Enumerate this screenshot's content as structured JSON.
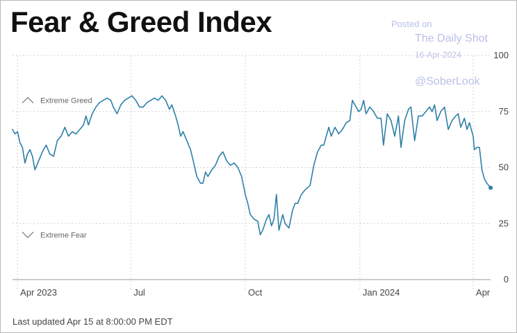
{
  "watermark": {
    "posted": "Posted on",
    "source": "The Daily Shot",
    "date": "16-Apr-2024",
    "handle": "@SoberLook"
  },
  "footer": {
    "updated": "Last updated Apr 15 at 8:00:00 PM EDT"
  },
  "colors": {
    "line": "#2d7fa8",
    "grid": "#d0d0d0",
    "axis": "#999999"
  },
  "chart_data": {
    "type": "line",
    "title": "Fear & Greed Index",
    "xlabel": "",
    "ylabel": "",
    "ylim": [
      0,
      100
    ],
    "y_ticks": [
      {
        "value": 0,
        "label": "0"
      },
      {
        "value": 25,
        "label": "25"
      },
      {
        "value": 50,
        "label": "50"
      },
      {
        "value": 75,
        "label": "75"
      },
      {
        "value": 100,
        "label": "100"
      }
    ],
    "x_range": [
      "2023-03-28",
      "2024-04-15"
    ],
    "x_ticks": [
      {
        "date": "2023-04-01",
        "label": "Apr 2023"
      },
      {
        "date": "2023-07-01",
        "label": "Jul"
      },
      {
        "date": "2023-10-01",
        "label": "Oct"
      },
      {
        "date": "2024-01-01",
        "label": "Jan 2024"
      },
      {
        "date": "2024-04-01",
        "label": "Apr"
      }
    ],
    "grid": true,
    "annotations": [
      {
        "text": "Extreme Greed",
        "value": 80,
        "icon": "chevron-up-icon"
      },
      {
        "text": "Extreme Fear",
        "value": 20,
        "icon": "chevron-down-icon"
      }
    ],
    "series": [
      {
        "end_marker": true,
        "points": [
          [
            "2023-03-28",
            67
          ],
          [
            "2023-03-30",
            65
          ],
          [
            "2023-04-01",
            66
          ],
          [
            "2023-04-03",
            61
          ],
          [
            "2023-04-05",
            59
          ],
          [
            "2023-04-07",
            52
          ],
          [
            "2023-04-09",
            56
          ],
          [
            "2023-04-11",
            58
          ],
          [
            "2023-04-13",
            55
          ],
          [
            "2023-04-15",
            49
          ],
          [
            "2023-04-18",
            53
          ],
          [
            "2023-04-21",
            57
          ],
          [
            "2023-04-24",
            60
          ],
          [
            "2023-04-27",
            56
          ],
          [
            "2023-04-30",
            55
          ],
          [
            "2023-05-03",
            62
          ],
          [
            "2023-05-06",
            64
          ],
          [
            "2023-05-09",
            68
          ],
          [
            "2023-05-12",
            64
          ],
          [
            "2023-05-15",
            66
          ],
          [
            "2023-05-18",
            65
          ],
          [
            "2023-05-21",
            67
          ],
          [
            "2023-05-24",
            69
          ],
          [
            "2023-05-26",
            73
          ],
          [
            "2023-05-28",
            69
          ],
          [
            "2023-05-31",
            74
          ],
          [
            "2023-06-03",
            77
          ],
          [
            "2023-06-06",
            79
          ],
          [
            "2023-06-09",
            80
          ],
          [
            "2023-06-12",
            81
          ],
          [
            "2023-06-15",
            80
          ],
          [
            "2023-06-17",
            77
          ],
          [
            "2023-06-20",
            74
          ],
          [
            "2023-06-23",
            78
          ],
          [
            "2023-06-26",
            80
          ],
          [
            "2023-06-29",
            81
          ],
          [
            "2023-07-02",
            82
          ],
          [
            "2023-07-05",
            80
          ],
          [
            "2023-07-08",
            77
          ],
          [
            "2023-07-11",
            77
          ],
          [
            "2023-07-14",
            79
          ],
          [
            "2023-07-17",
            80
          ],
          [
            "2023-07-20",
            81
          ],
          [
            "2023-07-23",
            80
          ],
          [
            "2023-07-26",
            82
          ],
          [
            "2023-07-29",
            80
          ],
          [
            "2023-08-01",
            76
          ],
          [
            "2023-08-03",
            78
          ],
          [
            "2023-08-06",
            73
          ],
          [
            "2023-08-08",
            69
          ],
          [
            "2023-08-10",
            64
          ],
          [
            "2023-08-12",
            66
          ],
          [
            "2023-08-15",
            62
          ],
          [
            "2023-08-18",
            58
          ],
          [
            "2023-08-21",
            51
          ],
          [
            "2023-08-23",
            46
          ],
          [
            "2023-08-26",
            43
          ],
          [
            "2023-08-28",
            43
          ],
          [
            "2023-08-30",
            48
          ],
          [
            "2023-09-01",
            46
          ],
          [
            "2023-09-04",
            49
          ],
          [
            "2023-09-07",
            51
          ],
          [
            "2023-09-10",
            55
          ],
          [
            "2023-09-13",
            57
          ],
          [
            "2023-09-16",
            53
          ],
          [
            "2023-09-19",
            51
          ],
          [
            "2023-09-22",
            52
          ],
          [
            "2023-09-25",
            50
          ],
          [
            "2023-09-28",
            46
          ],
          [
            "2023-10-01",
            38
          ],
          [
            "2023-10-03",
            34
          ],
          [
            "2023-10-05",
            29
          ],
          [
            "2023-10-08",
            27
          ],
          [
            "2023-10-11",
            26
          ],
          [
            "2023-10-13",
            20
          ],
          [
            "2023-10-15",
            22
          ],
          [
            "2023-10-18",
            27
          ],
          [
            "2023-10-20",
            29
          ],
          [
            "2023-10-22",
            24
          ],
          [
            "2023-10-24",
            27
          ],
          [
            "2023-10-26",
            38
          ],
          [
            "2023-10-28",
            22
          ],
          [
            "2023-10-31",
            29
          ],
          [
            "2023-11-02",
            25
          ],
          [
            "2023-11-05",
            23
          ],
          [
            "2023-11-08",
            31
          ],
          [
            "2023-11-10",
            34
          ],
          [
            "2023-11-12",
            34
          ],
          [
            "2023-11-15",
            38
          ],
          [
            "2023-11-18",
            40
          ],
          [
            "2023-11-22",
            42
          ],
          [
            "2023-11-25",
            51
          ],
          [
            "2023-11-28",
            57
          ],
          [
            "2023-12-01",
            60
          ],
          [
            "2023-12-03",
            60
          ],
          [
            "2023-12-05",
            64
          ],
          [
            "2023-12-07",
            68
          ],
          [
            "2023-12-09",
            64
          ],
          [
            "2023-12-12",
            68
          ],
          [
            "2023-12-15",
            65
          ],
          [
            "2023-12-18",
            67
          ],
          [
            "2023-12-21",
            70
          ],
          [
            "2023-12-24",
            71
          ],
          [
            "2023-12-26",
            80
          ],
          [
            "2023-12-28",
            78
          ],
          [
            "2023-12-31",
            75
          ],
          [
            "2024-01-02",
            76
          ],
          [
            "2024-01-04",
            80
          ],
          [
            "2024-01-06",
            74
          ],
          [
            "2024-01-09",
            77
          ],
          [
            "2024-01-12",
            75
          ],
          [
            "2024-01-15",
            72
          ],
          [
            "2024-01-18",
            72
          ],
          [
            "2024-01-20",
            60
          ],
          [
            "2024-01-23",
            74
          ],
          [
            "2024-01-26",
            71
          ],
          [
            "2024-01-29",
            64
          ],
          [
            "2024-02-01",
            73
          ],
          [
            "2024-02-03",
            59
          ],
          [
            "2024-02-06",
            71
          ],
          [
            "2024-02-09",
            76
          ],
          [
            "2024-02-11",
            77
          ],
          [
            "2024-02-14",
            62
          ],
          [
            "2024-02-17",
            73
          ],
          [
            "2024-02-20",
            73
          ],
          [
            "2024-02-23",
            75
          ],
          [
            "2024-02-26",
            77
          ],
          [
            "2024-02-28",
            75
          ],
          [
            "2024-03-01",
            78
          ],
          [
            "2024-03-03",
            71
          ],
          [
            "2024-03-06",
            75
          ],
          [
            "2024-03-09",
            77
          ],
          [
            "2024-03-12",
            67
          ],
          [
            "2024-03-15",
            71
          ],
          [
            "2024-03-18",
            73
          ],
          [
            "2024-03-20",
            74
          ],
          [
            "2024-03-22",
            68
          ],
          [
            "2024-03-25",
            72
          ],
          [
            "2024-03-27",
            67
          ],
          [
            "2024-03-29",
            70
          ],
          [
            "2024-04-01",
            64
          ],
          [
            "2024-04-02",
            58
          ],
          [
            "2024-04-04",
            59
          ],
          [
            "2024-04-06",
            59
          ],
          [
            "2024-04-08",
            49
          ],
          [
            "2024-04-10",
            45
          ],
          [
            "2024-04-12",
            43
          ],
          [
            "2024-04-15",
            41
          ]
        ]
      }
    ]
  }
}
